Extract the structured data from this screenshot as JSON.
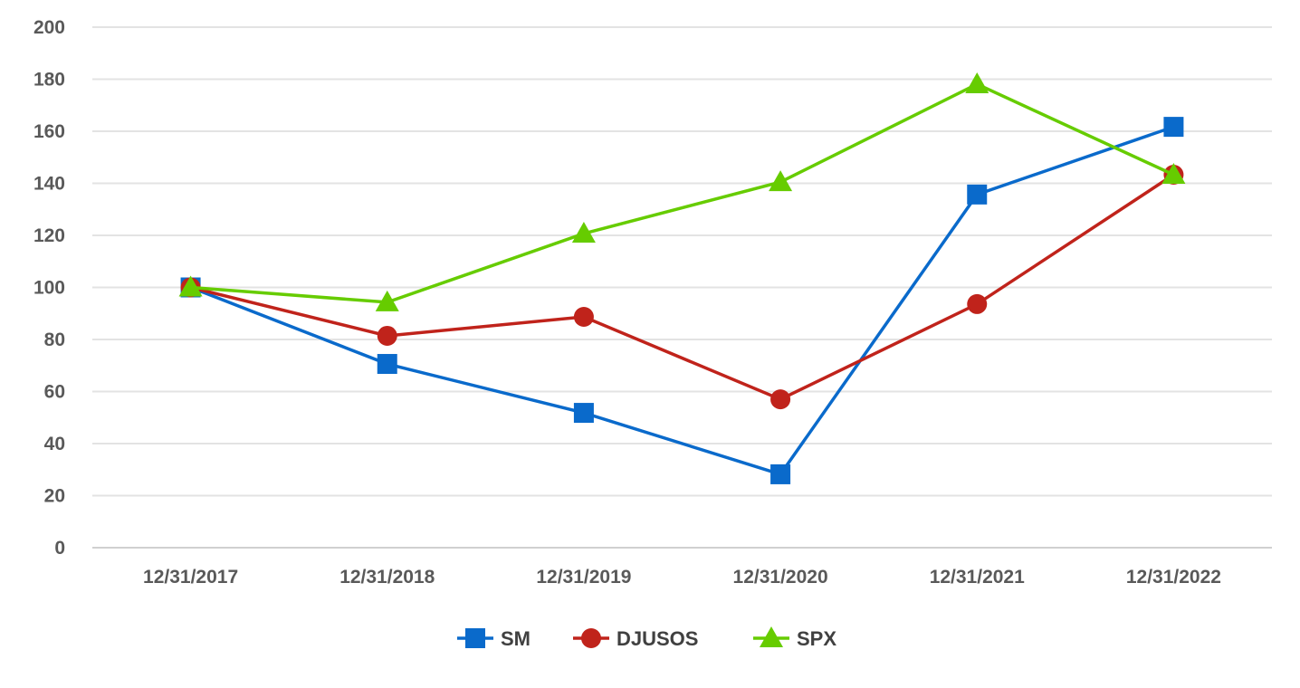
{
  "chart_data": {
    "type": "line",
    "title": "",
    "xlabel": "",
    "ylabel": "",
    "categories": [
      "12/31/2017",
      "12/31/2018",
      "12/31/2019",
      "12/31/2020",
      "12/31/2021",
      "12/31/2022"
    ],
    "ylim": [
      0,
      200
    ],
    "yticks": [
      0,
      20,
      40,
      60,
      80,
      100,
      120,
      140,
      160,
      180,
      200
    ],
    "grid": true,
    "legend": "bottom",
    "series": [
      {
        "name": "SM",
        "color": "#0A6ACB",
        "marker": "square",
        "values": [
          100,
          70.6,
          51.8,
          28.2,
          135.7,
          161.7
        ]
      },
      {
        "name": "DJUSOS",
        "color": "#C0231B",
        "marker": "circle",
        "values": [
          100,
          81.4,
          88.7,
          57.0,
          93.6,
          143.3
        ]
      },
      {
        "name": "SPX",
        "color": "#66CC00",
        "marker": "triangle",
        "values": [
          100,
          94.3,
          120.7,
          140.5,
          178.1,
          143.3
        ]
      }
    ]
  }
}
